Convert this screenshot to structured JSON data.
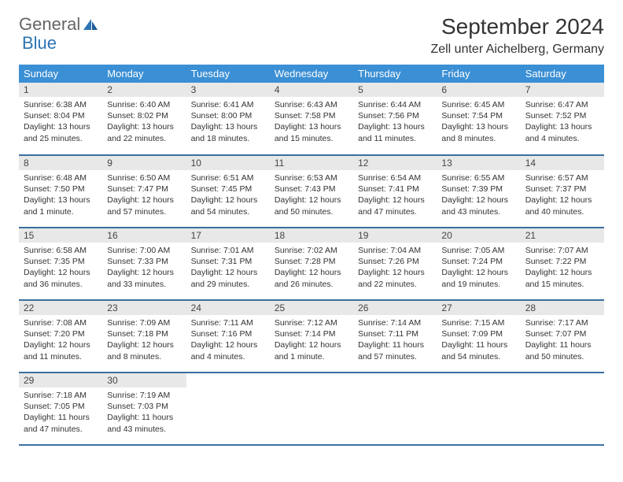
{
  "brand": {
    "part1": "General",
    "part2": "Blue"
  },
  "title": "September 2024",
  "location": "Zell unter Aichelberg, Germany",
  "colors": {
    "header_bg": "#3b8fd4",
    "header_text": "#ffffff",
    "daynum_bg": "#e8e8e8",
    "border": "#3b6fa0",
    "brand_blue": "#2d74b5",
    "brand_gray": "#666666",
    "text": "#333333",
    "background": "#ffffff"
  },
  "day_names": [
    "Sunday",
    "Monday",
    "Tuesday",
    "Wednesday",
    "Thursday",
    "Friday",
    "Saturday"
  ],
  "weeks": [
    [
      {
        "n": "1",
        "sr": "6:38 AM",
        "ss": "8:04 PM",
        "dl": "13 hours and 25 minutes."
      },
      {
        "n": "2",
        "sr": "6:40 AM",
        "ss": "8:02 PM",
        "dl": "13 hours and 22 minutes."
      },
      {
        "n": "3",
        "sr": "6:41 AM",
        "ss": "8:00 PM",
        "dl": "13 hours and 18 minutes."
      },
      {
        "n": "4",
        "sr": "6:43 AM",
        "ss": "7:58 PM",
        "dl": "13 hours and 15 minutes."
      },
      {
        "n": "5",
        "sr": "6:44 AM",
        "ss": "7:56 PM",
        "dl": "13 hours and 11 minutes."
      },
      {
        "n": "6",
        "sr": "6:45 AM",
        "ss": "7:54 PM",
        "dl": "13 hours and 8 minutes."
      },
      {
        "n": "7",
        "sr": "6:47 AM",
        "ss": "7:52 PM",
        "dl": "13 hours and 4 minutes."
      }
    ],
    [
      {
        "n": "8",
        "sr": "6:48 AM",
        "ss": "7:50 PM",
        "dl": "13 hours and 1 minute."
      },
      {
        "n": "9",
        "sr": "6:50 AM",
        "ss": "7:47 PM",
        "dl": "12 hours and 57 minutes."
      },
      {
        "n": "10",
        "sr": "6:51 AM",
        "ss": "7:45 PM",
        "dl": "12 hours and 54 minutes."
      },
      {
        "n": "11",
        "sr": "6:53 AM",
        "ss": "7:43 PM",
        "dl": "12 hours and 50 minutes."
      },
      {
        "n": "12",
        "sr": "6:54 AM",
        "ss": "7:41 PM",
        "dl": "12 hours and 47 minutes."
      },
      {
        "n": "13",
        "sr": "6:55 AM",
        "ss": "7:39 PM",
        "dl": "12 hours and 43 minutes."
      },
      {
        "n": "14",
        "sr": "6:57 AM",
        "ss": "7:37 PM",
        "dl": "12 hours and 40 minutes."
      }
    ],
    [
      {
        "n": "15",
        "sr": "6:58 AM",
        "ss": "7:35 PM",
        "dl": "12 hours and 36 minutes."
      },
      {
        "n": "16",
        "sr": "7:00 AM",
        "ss": "7:33 PM",
        "dl": "12 hours and 33 minutes."
      },
      {
        "n": "17",
        "sr": "7:01 AM",
        "ss": "7:31 PM",
        "dl": "12 hours and 29 minutes."
      },
      {
        "n": "18",
        "sr": "7:02 AM",
        "ss": "7:28 PM",
        "dl": "12 hours and 26 minutes."
      },
      {
        "n": "19",
        "sr": "7:04 AM",
        "ss": "7:26 PM",
        "dl": "12 hours and 22 minutes."
      },
      {
        "n": "20",
        "sr": "7:05 AM",
        "ss": "7:24 PM",
        "dl": "12 hours and 19 minutes."
      },
      {
        "n": "21",
        "sr": "7:07 AM",
        "ss": "7:22 PM",
        "dl": "12 hours and 15 minutes."
      }
    ],
    [
      {
        "n": "22",
        "sr": "7:08 AM",
        "ss": "7:20 PM",
        "dl": "12 hours and 11 minutes."
      },
      {
        "n": "23",
        "sr": "7:09 AM",
        "ss": "7:18 PM",
        "dl": "12 hours and 8 minutes."
      },
      {
        "n": "24",
        "sr": "7:11 AM",
        "ss": "7:16 PM",
        "dl": "12 hours and 4 minutes."
      },
      {
        "n": "25",
        "sr": "7:12 AM",
        "ss": "7:14 PM",
        "dl": "12 hours and 1 minute."
      },
      {
        "n": "26",
        "sr": "7:14 AM",
        "ss": "7:11 PM",
        "dl": "11 hours and 57 minutes."
      },
      {
        "n": "27",
        "sr": "7:15 AM",
        "ss": "7:09 PM",
        "dl": "11 hours and 54 minutes."
      },
      {
        "n": "28",
        "sr": "7:17 AM",
        "ss": "7:07 PM",
        "dl": "11 hours and 50 minutes."
      }
    ],
    [
      {
        "n": "29",
        "sr": "7:18 AM",
        "ss": "7:05 PM",
        "dl": "11 hours and 47 minutes."
      },
      {
        "n": "30",
        "sr": "7:19 AM",
        "ss": "7:03 PM",
        "dl": "11 hours and 43 minutes."
      },
      null,
      null,
      null,
      null,
      null
    ]
  ],
  "labels": {
    "sunrise": "Sunrise:",
    "sunset": "Sunset:",
    "daylight": "Daylight:"
  }
}
